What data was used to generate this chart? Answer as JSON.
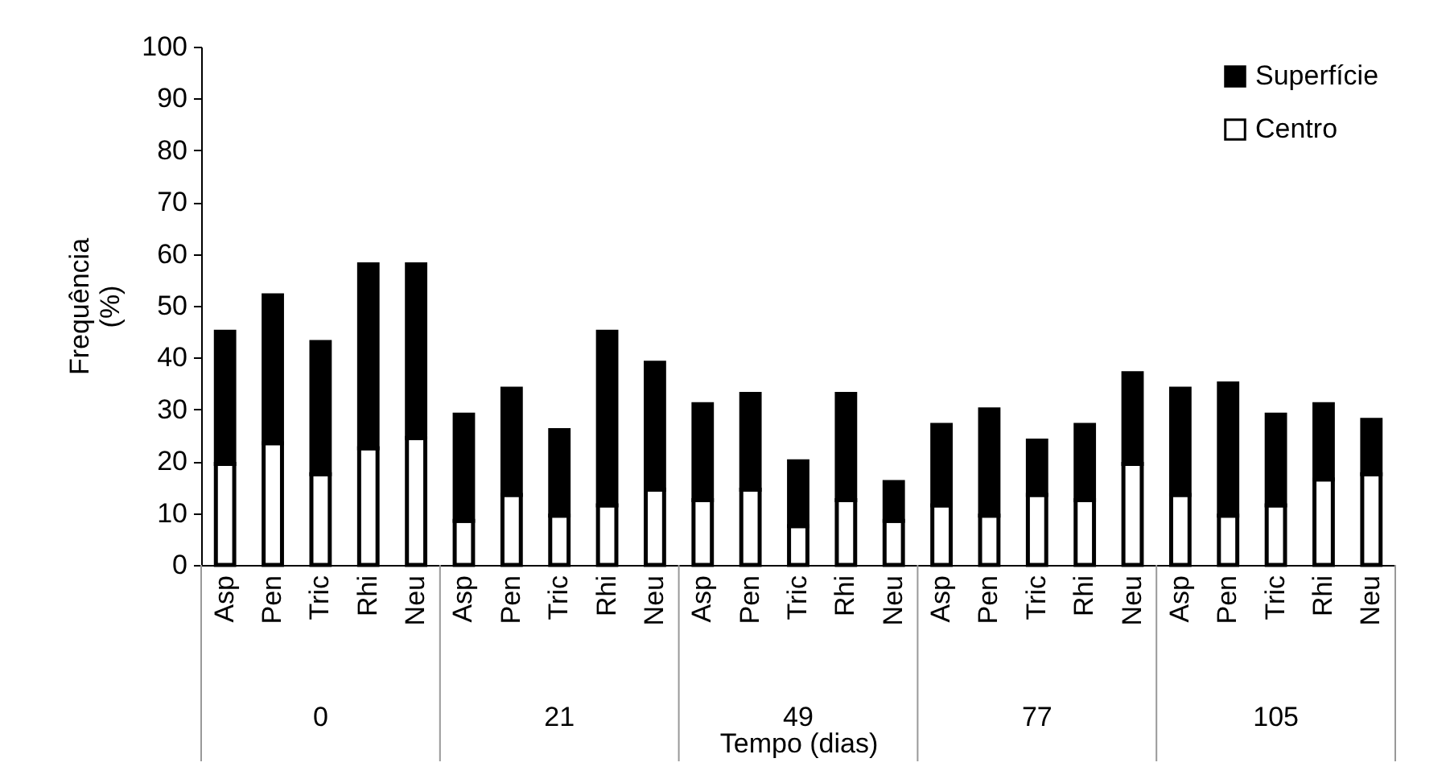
{
  "chart_data": {
    "type": "bar",
    "stacked": true,
    "xlabel": "Tempo (dias)",
    "ylabel": "Frequência (%)",
    "categories": [
      "Asp",
      "Pen",
      "Tric",
      "Rhi",
      "Neu",
      "Asp",
      "Pen",
      "Tric",
      "Rhi",
      "Neu",
      "Asp",
      "Pen",
      "Tric",
      "Rhi",
      "Neu",
      "Asp",
      "Pen",
      "Tric",
      "Rhi",
      "Neu",
      "Asp",
      "Pen",
      "Tric",
      "Rhi",
      "Neu"
    ],
    "series": [
      {
        "name": "Centro",
        "color": "#ffffff",
        "values": [
          19.5,
          23.5,
          17.5,
          22.5,
          24.5,
          8.5,
          13.5,
          9.5,
          11.5,
          14.5,
          12.5,
          14.5,
          7.5,
          12.5,
          8.5,
          11.5,
          9.5,
          13.5,
          12.5,
          19.5,
          13.5,
          9.5,
          11.5,
          16.5,
          17.5
        ]
      },
      {
        "name": "Superfície",
        "color": "#000000",
        "values": [
          25.5,
          28.5,
          25.5,
          35.5,
          33.5,
          20.5,
          20.5,
          16.5,
          33.5,
          24.5,
          18.5,
          18.5,
          12.5,
          20.5,
          7.5,
          15.5,
          20.5,
          10.5,
          14.5,
          17.5,
          20.5,
          25.5,
          17.5,
          14.5,
          10.5
        ]
      }
    ],
    "ylim": [
      0,
      100
    ],
    "yticks": [
      0,
      10,
      20,
      30,
      40,
      50,
      60,
      70,
      80,
      90,
      100
    ],
    "grid": false,
    "legend": "top right",
    "annotations": [
      "0",
      "21",
      "49",
      "77",
      "105"
    ]
  }
}
